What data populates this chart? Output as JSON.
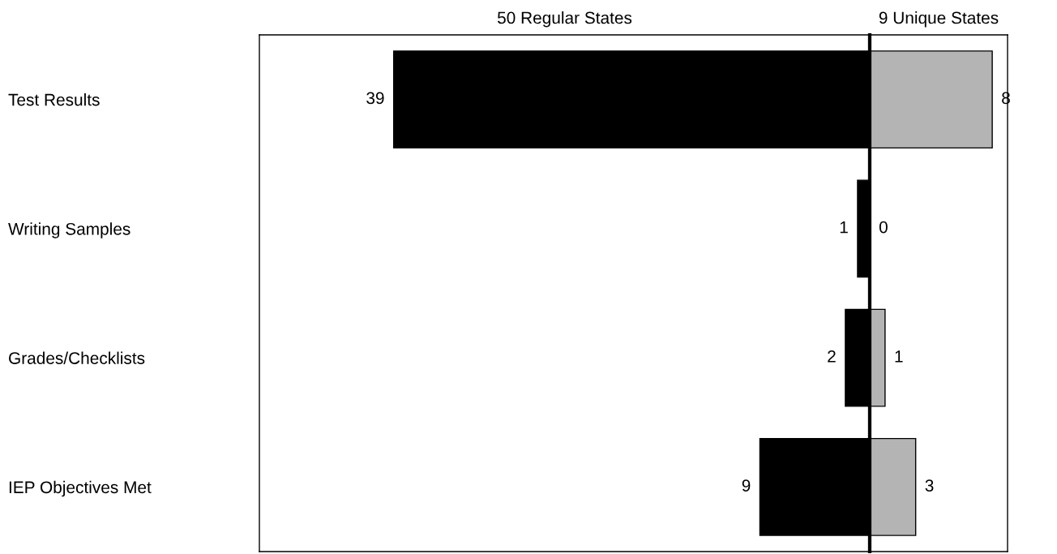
{
  "chart_data": [
    {
      "type": "bar",
      "orientation": "horizontal",
      "title": "50 Regular States",
      "categories": [
        "Test Results",
        "Writing Samples",
        "Grades/Checklists",
        "IEP Objectives Met"
      ],
      "xlim": [
        50,
        0
      ],
      "tick_labels": "y",
      "grid": false,
      "legend": false,
      "data_labels": true,
      "series": [
        {
          "color": "#000000",
          "values": [
            39,
            1,
            2,
            9
          ]
        }
      ]
    },
    {
      "type": "bar",
      "orientation": "horizontal",
      "title": "9 Unique States",
      "categories": [
        null,
        null,
        null,
        null
      ],
      "xlim": [
        0,
        9
      ],
      "tick_labels": false,
      "grid": false,
      "legend": false,
      "data_labels": true,
      "series": [
        {
          "color": "#b4b4b4",
          "values": [
            8,
            0,
            1,
            3
          ]
        }
      ]
    }
  ]
}
